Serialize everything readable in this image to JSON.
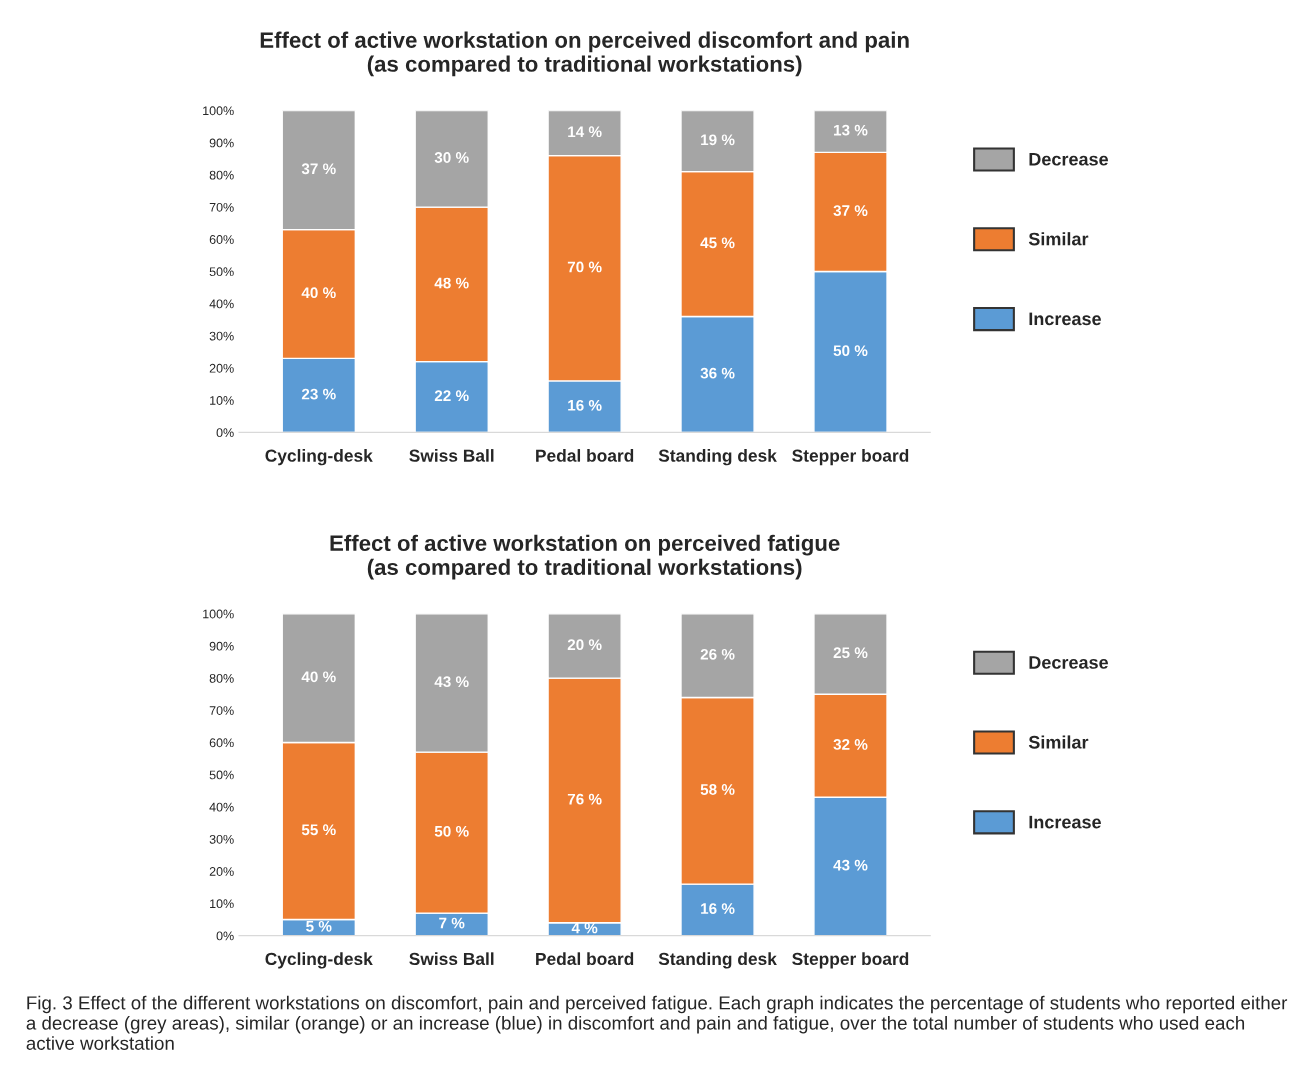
{
  "chart_data": [
    {
      "type": "bar",
      "stacked": true,
      "title": "Effect of active workstation on perceived discomfort and pain\n(as compared to traditional workstations)",
      "categories": [
        "Cycling-desk",
        "Swiss Ball",
        "Pedal board",
        "Standing desk",
        "Stepper board"
      ],
      "series": [
        {
          "name": "Increase",
          "color": "#5b9bd5",
          "values": [
            23,
            22,
            16,
            36,
            50
          ],
          "value_labels": [
            "23 %",
            "22 %",
            "16 %",
            "36 %",
            "50 %"
          ]
        },
        {
          "name": "Similar",
          "color": "#ed7d31",
          "values": [
            40,
            48,
            70,
            45,
            37
          ],
          "value_labels": [
            "40 %",
            "48 %",
            "70 %",
            "45 %",
            "37 %"
          ]
        },
        {
          "name": "Decrease",
          "color": "#a5a5a5",
          "values": [
            37,
            30,
            14,
            19,
            13
          ],
          "value_labels": [
            "37 %",
            "30 %",
            "14 %",
            "19 %",
            "13 %"
          ]
        }
      ],
      "ylim": [
        0,
        100
      ],
      "yticks": [
        {
          "value": 0,
          "label": "0%"
        },
        {
          "value": 10,
          "label": "10%"
        },
        {
          "value": 20,
          "label": "20%"
        },
        {
          "value": 30,
          "label": "30%"
        },
        {
          "value": 40,
          "label": "40%"
        },
        {
          "value": 50,
          "label": "50%"
        },
        {
          "value": 60,
          "label": "60%"
        },
        {
          "value": 70,
          "label": "70%"
        },
        {
          "value": 80,
          "label": "80%"
        },
        {
          "value": 90,
          "label": "90%"
        },
        {
          "value": 100,
          "label": "100%"
        }
      ],
      "legend": "right",
      "grid": false
    },
    {
      "type": "bar",
      "stacked": true,
      "title": "Effect of active workstation on perceived fatigue\n(as compared to traditional workstations)",
      "categories": [
        "Cycling-desk",
        "Swiss Ball",
        "Pedal board",
        "Standing desk",
        "Stepper board"
      ],
      "series": [
        {
          "name": "Increase",
          "color": "#5b9bd5",
          "values": [
            5,
            7,
            4,
            16,
            43
          ],
          "value_labels": [
            "5 %",
            "7 %",
            "4 %",
            "16 %",
            "43 %"
          ]
        },
        {
          "name": "Similar",
          "color": "#ed7d31",
          "values": [
            55,
            50,
            76,
            58,
            32
          ],
          "value_labels": [
            "55 %",
            "50 %",
            "76 %",
            "58 %",
            "32 %"
          ]
        },
        {
          "name": "Decrease",
          "color": "#a5a5a5",
          "values": [
            40,
            43,
            20,
            26,
            25
          ],
          "value_labels": [
            "40 %",
            "43 %",
            "20 %",
            "26 %",
            "25 %"
          ]
        }
      ],
      "ylim": [
        0,
        100
      ],
      "yticks": [
        {
          "value": 0,
          "label": "0%"
        },
        {
          "value": 10,
          "label": "10%"
        },
        {
          "value": 20,
          "label": "20%"
        },
        {
          "value": 30,
          "label": "30%"
        },
        {
          "value": 40,
          "label": "40%"
        },
        {
          "value": 50,
          "label": "50%"
        },
        {
          "value": 60,
          "label": "60%"
        },
        {
          "value": 70,
          "label": "70%"
        },
        {
          "value": 80,
          "label": "80%"
        },
        {
          "value": 90,
          "label": "90%"
        },
        {
          "value": 100,
          "label": "100%"
        }
      ],
      "legend": "right",
      "grid": false,
      "annotations": [
        "Fig. 3 Effect of the different workstations on discomfort, pain and perceived fatigue. Each graph indicates the percentage of students who reported either a decrease (grey areas), similar (orange) or an increase (blue) in discomfort and pain and fatigue, over the total number of students who used each active workstation"
      ]
    }
  ]
}
